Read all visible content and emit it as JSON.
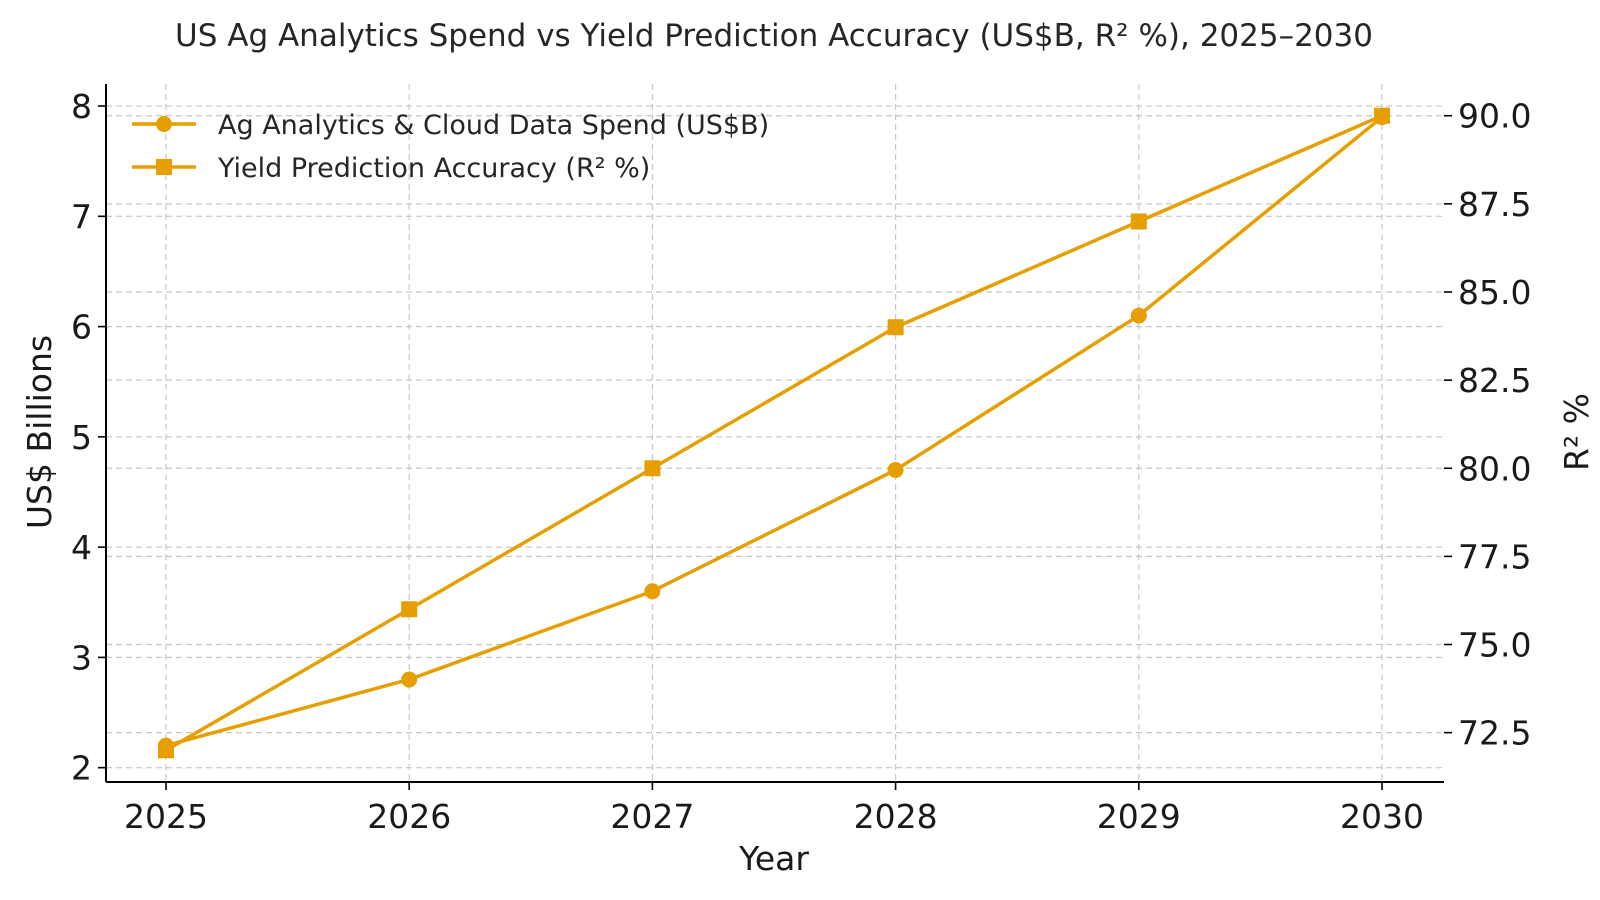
{
  "chart_data": {
    "type": "line",
    "title": "US Ag Analytics Spend vs Yield Prediction Accuracy (US$B, R² %), 2025–2030",
    "xlabel": "Year",
    "ylabel_left": "US$ Billions",
    "ylabel_right": "R² %",
    "x": [
      2025,
      2026,
      2027,
      2028,
      2029,
      2030
    ],
    "x_tick_labels": [
      "2025",
      "2026",
      "2027",
      "2028",
      "2029",
      "2030"
    ],
    "ylim_left": [
      1.87,
      8.2
    ],
    "ylim_right": [
      71.1,
      90.9
    ],
    "y_ticks_left": [
      "2",
      "3",
      "4",
      "5",
      "6",
      "7",
      "8"
    ],
    "y_ticks_right": [
      "72.5",
      "75.0",
      "77.5",
      "80.0",
      "82.5",
      "85.0",
      "87.5",
      "90.0"
    ],
    "grid": true,
    "legend_position": "top-left",
    "series": [
      {
        "name": "Ag Analytics & Cloud Data Spend (US$B)",
        "axis": "left",
        "marker": "circle",
        "color": "#E69F00",
        "values": [
          2.2,
          2.8,
          3.6,
          4.7,
          6.1,
          7.9
        ]
      },
      {
        "name": "Yield Prediction Accuracy (R² %)",
        "axis": "right",
        "marker": "square",
        "color": "#E69F00",
        "values": [
          72,
          76,
          80,
          84,
          87,
          90
        ]
      }
    ]
  }
}
